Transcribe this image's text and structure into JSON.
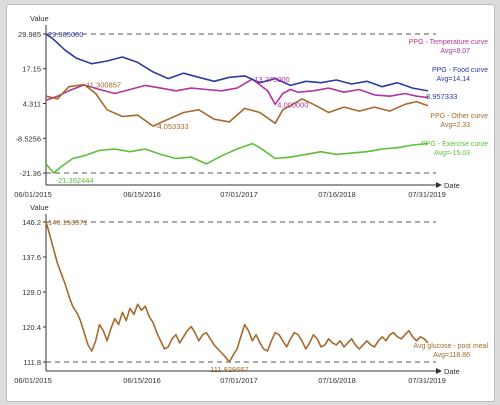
{
  "chart_data": [
    {
      "type": "line",
      "ylabel": "Value",
      "xlabel": "Date",
      "x_ticks": [
        "06/01/2015",
        "06/15/2016",
        "07/01/2017",
        "07/16/2018",
        "07/31/2019"
      ],
      "y_ticks": [
        "29.985",
        "17.15",
        "4.311",
        "-8.5256",
        "-21.36"
      ],
      "ylim": [
        -21.36,
        29.985
      ],
      "reference_lines": [
        29.985,
        -21.36
      ],
      "x_range": [
        "06/01/2015",
        "07/31/2019"
      ],
      "grid": false,
      "legend_placement": "right",
      "series": [
        {
          "name": "PPG - Temperature curve",
          "avg_label": "Avg=8.07",
          "color": "#b5339c",
          "x": [
            0,
            0.03,
            0.06,
            0.1,
            0.14,
            0.18,
            0.22,
            0.26,
            0.3,
            0.34,
            0.38,
            0.42,
            0.46,
            0.5,
            0.54,
            0.58,
            0.6,
            0.62,
            0.64,
            0.66,
            0.7,
            0.74,
            0.78,
            0.82,
            0.86,
            0.9,
            0.94,
            0.97,
            1.0
          ],
          "y": [
            5.5,
            7.0,
            9.0,
            11.2,
            9.5,
            8.0,
            9.5,
            11.0,
            10.0,
            9.0,
            10.0,
            9.5,
            9.0,
            10.0,
            13.3,
            9.0,
            4.0,
            8.0,
            9.5,
            8.5,
            9.0,
            10.0,
            8.5,
            9.5,
            7.5,
            7.0,
            8.0,
            7.0,
            6.5
          ]
        },
        {
          "name": "PPG - Food curve",
          "avg_label": "Avg=14.14",
          "color": "#2f3b9e",
          "x": [
            0,
            0.02,
            0.05,
            0.08,
            0.12,
            0.16,
            0.2,
            0.24,
            0.28,
            0.32,
            0.36,
            0.4,
            0.44,
            0.48,
            0.52,
            0.56,
            0.6,
            0.64,
            0.68,
            0.72,
            0.76,
            0.8,
            0.84,
            0.88,
            0.92,
            0.96,
            1.0
          ],
          "y": [
            29.985,
            28.0,
            24.0,
            21.0,
            19.0,
            20.0,
            21.5,
            19.5,
            16.0,
            13.5,
            15.5,
            14.0,
            12.5,
            14.0,
            14.5,
            12.0,
            13.5,
            11.0,
            12.5,
            12.0,
            13.0,
            11.5,
            12.5,
            10.5,
            12.0,
            10.0,
            8.96
          ]
        },
        {
          "name": "PPG - Other curve",
          "avg_label": "Avg=2.33",
          "color": "#a56a2c",
          "x": [
            0,
            0.03,
            0.06,
            0.1,
            0.13,
            0.16,
            0.2,
            0.24,
            0.28,
            0.32,
            0.36,
            0.4,
            0.44,
            0.48,
            0.52,
            0.56,
            0.6,
            0.62,
            0.64,
            0.67,
            0.7,
            0.74,
            0.78,
            0.82,
            0.86,
            0.9,
            0.94,
            0.97,
            1.0
          ],
          "y": [
            7.0,
            6.0,
            10.5,
            11.3,
            8.0,
            2.0,
            -0.5,
            0.0,
            -4.05,
            -1.5,
            1.0,
            2.0,
            -1.5,
            -2.5,
            2.5,
            1.0,
            -3.0,
            2.0,
            3.5,
            6.0,
            4.0,
            1.0,
            3.0,
            1.5,
            3.0,
            1.5,
            4.0,
            5.0,
            3.5
          ]
        },
        {
          "name": "PPG - Exercise curve",
          "avg_label": "Avg=-15.03",
          "color": "#5cbf3a",
          "x": [
            0,
            0.02,
            0.04,
            0.07,
            0.1,
            0.14,
            0.18,
            0.22,
            0.26,
            0.3,
            0.34,
            0.38,
            0.42,
            0.46,
            0.5,
            0.54,
            0.56,
            0.6,
            0.64,
            0.68,
            0.72,
            0.76,
            0.8,
            0.84,
            0.88,
            0.92,
            0.96,
            1.0
          ],
          "y": [
            -18.0,
            -21.36,
            -19.0,
            -16.0,
            -15.0,
            -13.0,
            -12.5,
            -13.5,
            -12.5,
            -14.5,
            -16.0,
            -15.5,
            -18.0,
            -15.0,
            -12.5,
            -10.5,
            -12.0,
            -16.0,
            -15.5,
            -14.5,
            -13.5,
            -14.5,
            -14.0,
            -13.5,
            -12.5,
            -12.0,
            -11.0,
            -10.5
          ]
        }
      ],
      "annotations": [
        {
          "text": "29.985000",
          "x": 0.0,
          "y": 29.985,
          "color": "#2f3b9e"
        },
        {
          "text": "-21.362444",
          "x": 0.02,
          "y": -21.36,
          "color": "#5cbf3a"
        },
        {
          "text": "11.300857",
          "x": 0.1,
          "y": 11.3,
          "color": "#a56a2c"
        },
        {
          "text": "-4.053333",
          "x": 0.28,
          "y": -4.05,
          "color": "#a56a2c"
        },
        {
          "text": "13.275000",
          "x": 0.54,
          "y": 13.3,
          "color": "#b5339c"
        },
        {
          "text": "4.000000",
          "x": 0.6,
          "y": 4.0,
          "color": "#b5339c"
        },
        {
          "text": "8.957333",
          "x": 1.0,
          "y": 8.96,
          "color": "#2f3b9e"
        }
      ]
    },
    {
      "type": "line",
      "ylabel": "Value",
      "xlabel": "Date",
      "x_ticks": [
        "06/01/2015",
        "06/15/2016",
        "07/01/2017",
        "07/16/2018",
        "07/31/2019"
      ],
      "y_ticks": [
        "146.2",
        "137.6",
        "129.0",
        "120.4",
        "111.8"
      ],
      "ylim": [
        111.8,
        146.2
      ],
      "reference_lines": [
        146.2,
        111.8
      ],
      "x_range": [
        "06/01/2015",
        "07/31/2019"
      ],
      "grid": false,
      "legend_placement": "right",
      "series": [
        {
          "name": "Avg glucose - post meal",
          "avg_label": "Avg=118.86",
          "color": "#a56a2c",
          "x": [
            0,
            0.01,
            0.02,
            0.03,
            0.04,
            0.05,
            0.06,
            0.07,
            0.08,
            0.09,
            0.1,
            0.11,
            0.12,
            0.13,
            0.14,
            0.15,
            0.16,
            0.17,
            0.18,
            0.19,
            0.2,
            0.21,
            0.22,
            0.23,
            0.24,
            0.25,
            0.26,
            0.27,
            0.28,
            0.29,
            0.3,
            0.31,
            0.32,
            0.33,
            0.34,
            0.35,
            0.36,
            0.37,
            0.38,
            0.39,
            0.4,
            0.41,
            0.42,
            0.43,
            0.44,
            0.45,
            0.46,
            0.47,
            0.48,
            0.49,
            0.5,
            0.51,
            0.52,
            0.53,
            0.54,
            0.55,
            0.56,
            0.57,
            0.58,
            0.59,
            0.6,
            0.61,
            0.62,
            0.63,
            0.64,
            0.65,
            0.66,
            0.67,
            0.68,
            0.69,
            0.7,
            0.71,
            0.72,
            0.73,
            0.74,
            0.75,
            0.76,
            0.77,
            0.78,
            0.79,
            0.8,
            0.81,
            0.82,
            0.83,
            0.84,
            0.85,
            0.86,
            0.87,
            0.88,
            0.89,
            0.9,
            0.91,
            0.92,
            0.93,
            0.94,
            0.95,
            0.96,
            0.97,
            0.98,
            0.99,
            1.0
          ],
          "y": [
            146.19,
            143.0,
            139.5,
            136.0,
            133.5,
            131.0,
            128.0,
            125.5,
            124.0,
            122.0,
            119.0,
            116.0,
            114.5,
            117.0,
            121.0,
            119.5,
            117.0,
            120.0,
            122.5,
            121.0,
            124.0,
            122.0,
            125.0,
            123.5,
            126.0,
            124.5,
            125.5,
            123.0,
            121.5,
            119.0,
            117.0,
            115.0,
            115.5,
            117.5,
            118.5,
            116.5,
            118.0,
            119.5,
            120.5,
            119.0,
            117.0,
            118.5,
            119.0,
            117.5,
            116.0,
            115.0,
            114.0,
            113.0,
            111.83,
            113.5,
            115.0,
            118.0,
            121.0,
            119.5,
            117.0,
            118.5,
            116.5,
            115.0,
            114.5,
            117.0,
            119.0,
            118.5,
            117.0,
            115.5,
            117.5,
            119.0,
            118.5,
            117.0,
            115.0,
            116.5,
            118.5,
            117.5,
            115.5,
            116.0,
            117.5,
            116.5,
            116.0,
            117.0,
            115.5,
            116.5,
            117.5,
            116.0,
            115.0,
            116.0,
            117.0,
            116.0,
            115.5,
            117.0,
            118.0,
            117.0,
            118.5,
            119.0,
            118.0,
            117.5,
            118.5,
            119.5,
            118.0,
            117.0,
            118.0,
            117.5,
            116.5
          ]
        }
      ],
      "annotations": [
        {
          "text": "146.193371",
          "x": 0.0,
          "y": 146.19,
          "color": "#a56a2c"
        },
        {
          "text": "111.828667",
          "x": 0.48,
          "y": 111.83,
          "color": "#a56a2c"
        }
      ]
    }
  ]
}
